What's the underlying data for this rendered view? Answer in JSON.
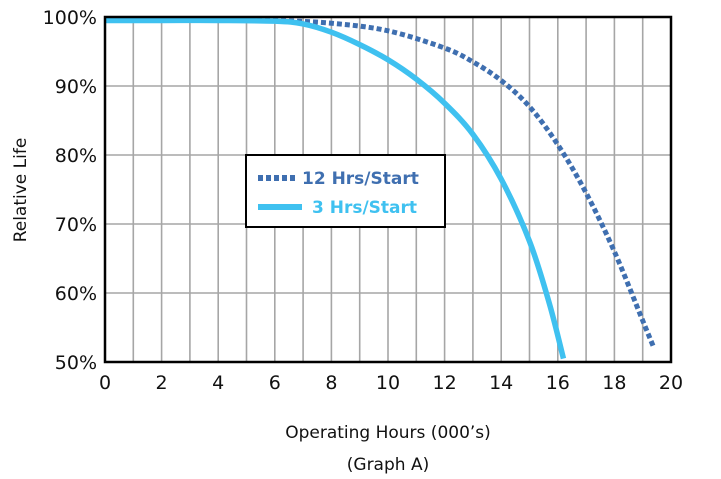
{
  "chart_data": {
    "type": "line",
    "xlabel": "Operating Hours (000’s)",
    "subtitle": "(Graph A)",
    "ylabel": "Relative Life",
    "xlim": [
      0,
      20
    ],
    "ylim": [
      50,
      100
    ],
    "x_ticks": [
      0,
      2,
      4,
      6,
      8,
      10,
      12,
      14,
      16,
      18,
      20
    ],
    "x_tick_labels": [
      "0",
      "2",
      "4",
      "6",
      "8",
      "10",
      "12",
      "14",
      "16",
      "18",
      "20"
    ],
    "y_ticks": [
      50,
      60,
      70,
      80,
      90,
      100
    ],
    "y_tick_labels": [
      "50%",
      "60%",
      "70%",
      "80%",
      "90%",
      "100%"
    ],
    "grid": true,
    "legend_position": "center-left",
    "series": [
      {
        "name": "12 Hrs/Start",
        "color": "#3f6fb0",
        "style": "dotted",
        "points": [
          [
            0,
            99.5
          ],
          [
            2,
            99.5
          ],
          [
            4,
            99.5
          ],
          [
            6,
            99.5
          ],
          [
            8,
            99.1
          ],
          [
            10,
            98
          ],
          [
            12,
            95.5
          ],
          [
            13,
            93.5
          ],
          [
            14,
            90.8
          ],
          [
            15,
            87
          ],
          [
            16,
            81.5
          ],
          [
            17,
            74.5
          ],
          [
            18,
            66
          ],
          [
            19,
            56
          ],
          [
            19.4,
            52
          ]
        ]
      },
      {
        "name": "3 Hrs/Start",
        "color": "#3fc1f0",
        "style": "solid",
        "points": [
          [
            0,
            99.5
          ],
          [
            2,
            99.5
          ],
          [
            4,
            99.5
          ],
          [
            6,
            99.4
          ],
          [
            7,
            99
          ],
          [
            8,
            97.8
          ],
          [
            9,
            96
          ],
          [
            10,
            93.8
          ],
          [
            11,
            91
          ],
          [
            12,
            87.5
          ],
          [
            13,
            83
          ],
          [
            14,
            76.5
          ],
          [
            15,
            67.5
          ],
          [
            15.7,
            58.5
          ],
          [
            16.2,
            50.5
          ]
        ]
      }
    ]
  }
}
